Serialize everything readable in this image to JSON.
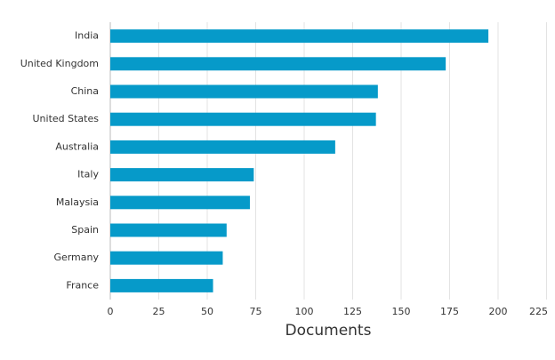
{
  "chart_data": {
    "type": "hbar",
    "categories": [
      "India",
      "United Kingdom",
      "China",
      "United States",
      "Australia",
      "Italy",
      "Malaysia",
      "Spain",
      "Germany",
      "France"
    ],
    "values": [
      195,
      173,
      138,
      137,
      116,
      74,
      72,
      60,
      58,
      53
    ],
    "color": "#069ac9",
    "x_label": "Documents",
    "xlim": [
      0,
      225
    ],
    "xticks": [
      0,
      25,
      50,
      75,
      100,
      125,
      150,
      175,
      200,
      225
    ],
    "grid": true
  }
}
